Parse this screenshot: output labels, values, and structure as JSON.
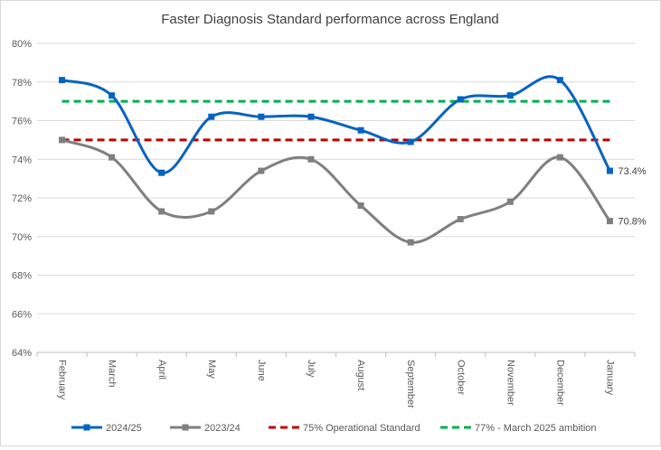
{
  "chart_data": {
    "type": "line",
    "title": "Faster Diagnosis Standard performance across England",
    "xlabel": "",
    "ylabel": "",
    "categories": [
      "February",
      "March",
      "April",
      "May",
      "June",
      "July",
      "August",
      "September",
      "October",
      "November",
      "December",
      "January"
    ],
    "y_ticks": [
      "64%",
      "66%",
      "68%",
      "70%",
      "72%",
      "74%",
      "76%",
      "78%",
      "80%"
    ],
    "ylim": [
      64,
      80
    ],
    "grid": "horizontal",
    "legend_position": "bottom",
    "series": [
      {
        "name": "2024/25",
        "color": "#0563c1",
        "marker": "square",
        "smooth": true,
        "values": [
          78.1,
          77.3,
          73.3,
          76.2,
          76.2,
          76.2,
          75.5,
          74.9,
          77.1,
          77.3,
          78.1,
          73.4
        ],
        "end_label": "73.4%"
      },
      {
        "name": "2023/24",
        "color": "#7f7f7f",
        "marker": "square",
        "smooth": true,
        "values": [
          75.0,
          74.1,
          71.3,
          71.3,
          73.4,
          74.0,
          71.6,
          69.7,
          70.9,
          71.8,
          74.1,
          70.8
        ],
        "end_label": "70.8%"
      },
      {
        "name": "75% Operational Standard",
        "color": "#c00000",
        "dashed": true,
        "values": [
          75,
          75,
          75,
          75,
          75,
          75,
          75,
          75,
          75,
          75,
          75,
          75
        ]
      },
      {
        "name": "77% - March 2025 ambition",
        "color": "#00b050",
        "dashed": true,
        "values": [
          77,
          77,
          77,
          77,
          77,
          77,
          77,
          77,
          77,
          77,
          77,
          77
        ]
      }
    ]
  }
}
